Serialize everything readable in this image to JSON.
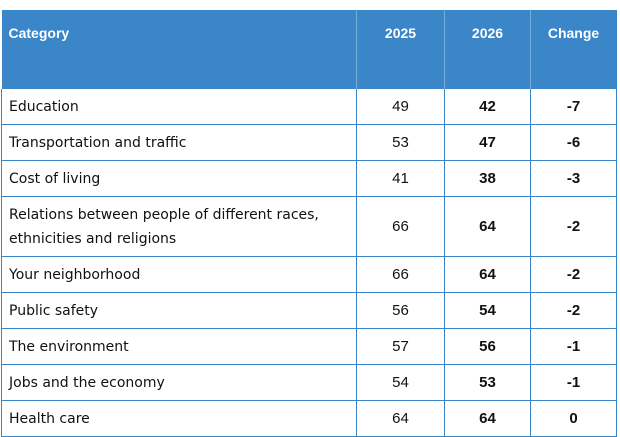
{
  "table": {
    "headers": {
      "category": "Category",
      "year1": "2025",
      "year2": "2026",
      "change": "Change"
    },
    "rows": [
      {
        "category": "Education",
        "y2025": "49",
        "y2026": "42",
        "change": "-7"
      },
      {
        "category": "Transportation and traffic",
        "y2025": "53",
        "y2026": "47",
        "change": "-6"
      },
      {
        "category": "Cost of living",
        "y2025": "41",
        "y2026": "38",
        "change": "-3"
      },
      {
        "category": "Relations between people of different races, ethnicities and religions",
        "y2025": "66",
        "y2026": "64",
        "change": "-2"
      },
      {
        "category": "Your neighborhood",
        "y2025": "66",
        "y2026": "64",
        "change": "-2"
      },
      {
        "category": "Public safety",
        "y2025": "56",
        "y2026": "54",
        "change": "-2"
      },
      {
        "category": "The environment",
        "y2025": "57",
        "y2026": "56",
        "change": "-1"
      },
      {
        "category": "Jobs and the economy",
        "y2025": "54",
        "y2026": "53",
        "change": "-1"
      },
      {
        "category": "Health care",
        "y2025": "64",
        "y2026": "64",
        "change": "0"
      }
    ]
  },
  "colors": {
    "header_bg": "#3a86c8",
    "header_text": "#ffffff",
    "grid": "#3a86c8"
  }
}
